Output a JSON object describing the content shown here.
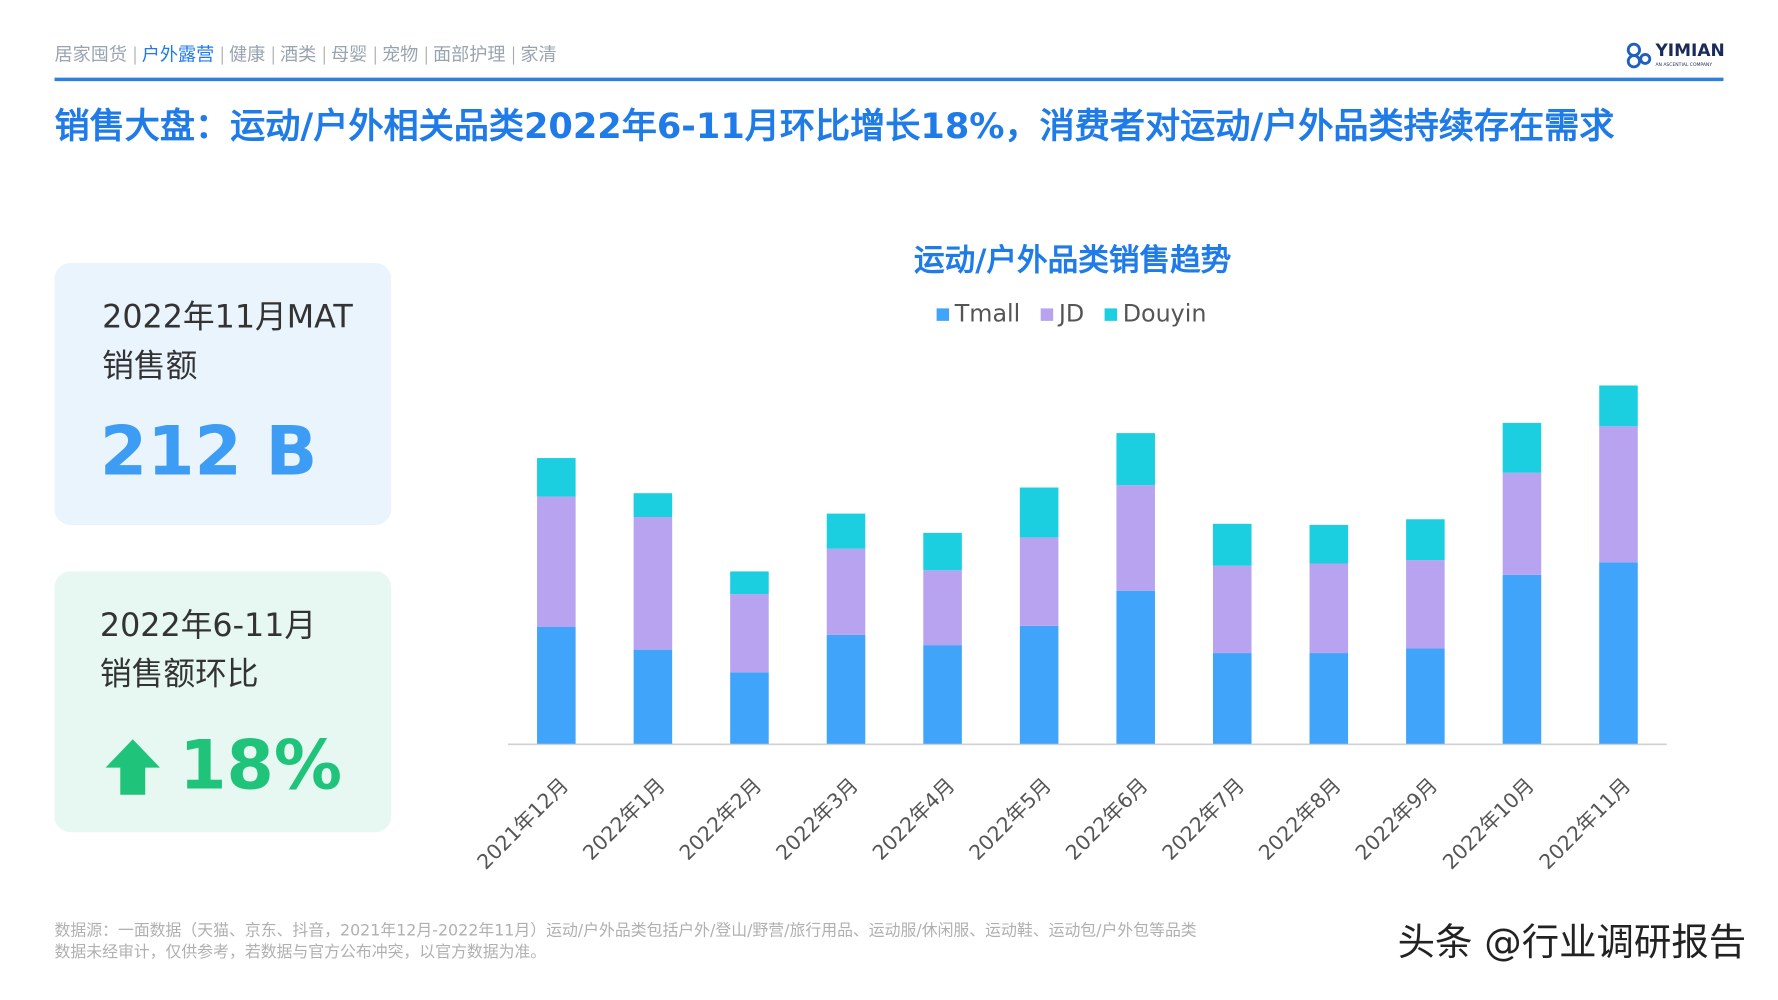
{
  "header": {
    "nav": [
      "居家囤货",
      "户外露营",
      "健康",
      "酒类",
      "母婴",
      "宠物",
      "面部护理",
      "家清"
    ],
    "active": "户外露营",
    "logo": "YIMIAN",
    "logo_sub": "AN ASCENTIAL COMPANY"
  },
  "title": "销售大盘：运动/户外相关品类2022年6-11月环比增长18%，消费者对运动/户外品类持续存在需求",
  "cards": [
    {
      "label_1": "2022年11月MAT",
      "label_2": "销售额",
      "value": "212 B"
    },
    {
      "label_1": "2022年6-11月",
      "label_2": "销售额环比",
      "value": "18%"
    }
  ],
  "chart_data": {
    "type": "stacked-bar",
    "title": "运动/户外品类销售趋势",
    "categories": [
      "2021年12月",
      "2022年1月",
      "2022年2月",
      "2022年3月",
      "2022年4月",
      "2022年5月",
      "2022年6月",
      "2022年7月",
      "2022年8月",
      "2022年9月",
      "2022年10月",
      "2022年11月"
    ],
    "series": [
      {
        "name": "Tmall",
        "color": "#3fa4fa",
        "values": [
          103,
          83,
          63,
          96,
          87,
          104,
          135,
          80,
          80,
          84,
          149,
          160
        ]
      },
      {
        "name": "JD",
        "color": "#b7a3ef",
        "values": [
          115,
          117,
          69,
          76,
          66,
          78,
          93,
          77,
          79,
          78,
          90,
          120
        ]
      },
      {
        "name": "Douyin",
        "color": "#1ccfe0",
        "values": [
          34,
          21,
          20,
          31,
          33,
          44,
          46,
          37,
          34,
          36,
          44,
          36
        ]
      }
    ]
  },
  "footnote": [
    "数据源：一面数据（天猫、京东、抖音，2021年12月-2022年11月）运动/户外品类包括户外/登山/野营/旅行用品、运动服/休闲服、运动鞋、运动包/户外包等品类",
    "数据未经审计，仅供参考，若数据与官方公布冲突，以官方数据为准。"
  ],
  "watermark": "头条 @行业调研报告"
}
